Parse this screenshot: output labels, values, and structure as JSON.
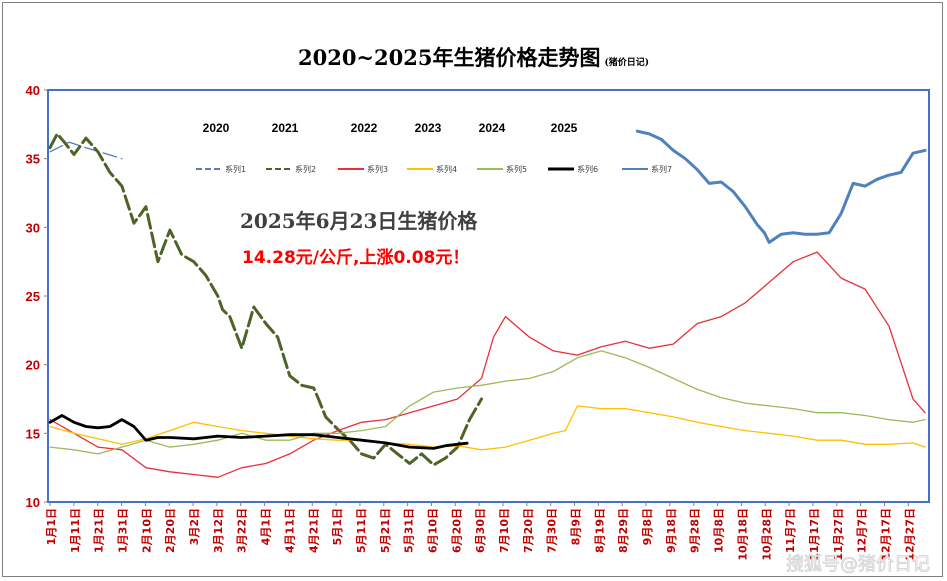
{
  "chart_data": {
    "type": "line",
    "title": "2020~2025年生猪价格走势图",
    "subtitle": "(猪价日记)",
    "ylim": [
      10,
      40
    ],
    "yticks": [
      10,
      15,
      20,
      25,
      30,
      35,
      40
    ],
    "x_tick_labels": [
      "1月1日",
      "1月11日",
      "1月21日",
      "1月31日",
      "2月10日",
      "2月20日",
      "3月2日",
      "3月12日",
      "3月22日",
      "4月1日",
      "4月11日",
      "4月21日",
      "5月1日",
      "5月11日",
      "5月21日",
      "5月31日",
      "6月10日",
      "6月20日",
      "6月30日",
      "7月10日",
      "7月20日",
      "7月30日",
      "8月9日",
      "8月19日",
      "8月29日",
      "9月8日",
      "9月18日",
      "9月28日",
      "10月8日",
      "10月18日",
      "10月28日",
      "11月7日",
      "11月17日",
      "11月27日",
      "12月7日",
      "12月17日",
      "12月27日"
    ],
    "year_labels": [
      "2020",
      "2021",
      "2022",
      "2023",
      "2024",
      "2025"
    ],
    "legend": [
      "系列1",
      "系列2",
      "系列3",
      "系列4",
      "系列5",
      "系列6",
      "系列7"
    ],
    "legend_position": "top",
    "annotation": {
      "headline": "2025年6月23日生猪价格",
      "detail": "14.28元/公斤,上涨0.08元！"
    },
    "watermark": "搜狐号@猪价日记",
    "series": [
      {
        "name": "系列1",
        "color": "#4f81bd",
        "dash": "dash",
        "x": [
          0,
          8,
          15,
          30
        ],
        "y": [
          35.5,
          36.2,
          35.8,
          35.0
        ]
      },
      {
        "name": "系列2",
        "color": "#4f6228",
        "dash": "dash",
        "x": [
          0,
          3,
          6,
          10,
          15,
          20,
          25,
          30,
          35,
          38,
          40,
          45,
          50,
          55,
          60,
          65,
          70,
          72,
          75,
          80,
          85,
          90,
          95,
          100,
          105,
          110,
          112,
          115,
          120,
          125,
          130,
          135,
          140,
          145,
          150,
          155,
          160,
          165,
          170,
          175,
          180
        ],
        "y": [
          35.8,
          36.8,
          36.2,
          35.3,
          36.5,
          35.5,
          34,
          33,
          30.3,
          31,
          31.5,
          27.5,
          29.8,
          28,
          27.5,
          26.5,
          25,
          24,
          23.5,
          21.2,
          24.2,
          23,
          22,
          19.2,
          18.5,
          18.3,
          17.5,
          16.2,
          15.3,
          14.5,
          13.5,
          13.2,
          14.2,
          13.5,
          12.8,
          13.5,
          12.7,
          13.2,
          14.0,
          16.0,
          17.5
        ]
      },
      {
        "name": "系列3",
        "color": "#e8303a",
        "dash": "solid",
        "x": [
          0,
          10,
          20,
          30,
          40,
          50,
          60,
          70,
          80,
          90,
          100,
          110,
          120,
          130,
          140,
          150,
          160,
          170,
          180,
          185,
          190,
          200,
          210,
          220,
          230,
          240,
          250,
          260,
          270,
          280,
          290,
          300,
          310,
          320,
          330,
          340,
          350,
          360,
          365
        ],
        "y": [
          16,
          15,
          14,
          13.8,
          12.5,
          12.2,
          12,
          11.8,
          12.5,
          12.8,
          13.5,
          14.5,
          15.2,
          15.8,
          16.0,
          16.5,
          17,
          17.5,
          19,
          22,
          23.5,
          22,
          21,
          20.7,
          21.3,
          21.7,
          21.2,
          21.5,
          23,
          23.5,
          24.5,
          26,
          27.5,
          28.2,
          26.3,
          25.5,
          22.8,
          17.5,
          16.5
        ]
      },
      {
        "name": "系列4",
        "color": "#ffc000",
        "dash": "solid",
        "x": [
          0,
          10,
          20,
          30,
          40,
          50,
          60,
          70,
          80,
          90,
          100,
          110,
          120,
          130,
          140,
          150,
          160,
          170,
          180,
          190,
          200,
          210,
          215,
          220,
          230,
          240,
          250,
          260,
          270,
          280,
          290,
          300,
          310,
          320,
          330,
          340,
          350,
          360,
          365
        ],
        "y": [
          15.5,
          15.0,
          14.6,
          14.2,
          14.6,
          15.2,
          15.8,
          15.5,
          15.2,
          15.0,
          14.8,
          14.6,
          14.5,
          14.5,
          14.3,
          14.2,
          14.0,
          14.1,
          13.8,
          14.0,
          14.5,
          15.0,
          15.2,
          17.0,
          16.8,
          16.8,
          16.5,
          16.2,
          15.8,
          15.5,
          15.2,
          15.0,
          14.8,
          14.5,
          14.5,
          14.2,
          14.2,
          14.3,
          14.0
        ]
      },
      {
        "name": "系列5",
        "color": "#9bbb59",
        "dash": "solid",
        "x": [
          0,
          10,
          20,
          30,
          40,
          50,
          60,
          70,
          80,
          90,
          100,
          110,
          120,
          130,
          140,
          150,
          155,
          160,
          170,
          180,
          190,
          200,
          210,
          220,
          230,
          240,
          250,
          260,
          270,
          280,
          290,
          300,
          310,
          320,
          330,
          340,
          350,
          360,
          365
        ],
        "y": [
          14.0,
          13.8,
          13.5,
          14.0,
          14.5,
          14.0,
          14.2,
          14.5,
          15.0,
          14.5,
          14.5,
          15.0,
          15.0,
          15.2,
          15.5,
          17.0,
          17.5,
          18.0,
          18.3,
          18.5,
          18.8,
          19.0,
          19.5,
          20.5,
          21.0,
          20.5,
          19.8,
          19.0,
          18.2,
          17.6,
          17.2,
          17.0,
          16.8,
          16.5,
          16.5,
          16.3,
          16.0,
          15.8,
          16.0
        ]
      },
      {
        "name": "系列6",
        "color": "#000000",
        "dash": "solid",
        "x": [
          0,
          5,
          10,
          15,
          20,
          25,
          30,
          35,
          40,
          45,
          50,
          60,
          70,
          80,
          90,
          100,
          110,
          120,
          130,
          140,
          150,
          160,
          165,
          170,
          174
        ],
        "y": [
          15.8,
          16.3,
          15.8,
          15.5,
          15.4,
          15.5,
          16.0,
          15.5,
          14.5,
          14.7,
          14.7,
          14.6,
          14.8,
          14.7,
          14.8,
          14.9,
          14.9,
          14.7,
          14.5,
          14.3,
          14.0,
          13.9,
          14.1,
          14.2,
          14.28
        ]
      },
      {
        "name": "系列7",
        "color": "#4f81bd",
        "dash": "solid",
        "x": [
          245,
          250,
          255,
          260,
          265,
          270,
          275,
          280,
          285,
          290,
          295,
          298,
          300,
          305,
          310,
          315,
          320,
          325,
          330,
          335,
          340,
          345,
          350,
          355,
          360,
          365
        ],
        "y": [
          37,
          36.8,
          36.4,
          35.6,
          35.0,
          34.2,
          33.2,
          33.3,
          32.6,
          31.5,
          30.2,
          29.6,
          28.9,
          29.5,
          29.6,
          29.5,
          29.5,
          29.6,
          31.0,
          33.2,
          33.0,
          33.5,
          33.8,
          34.0,
          35.4,
          35.6
        ]
      }
    ]
  }
}
